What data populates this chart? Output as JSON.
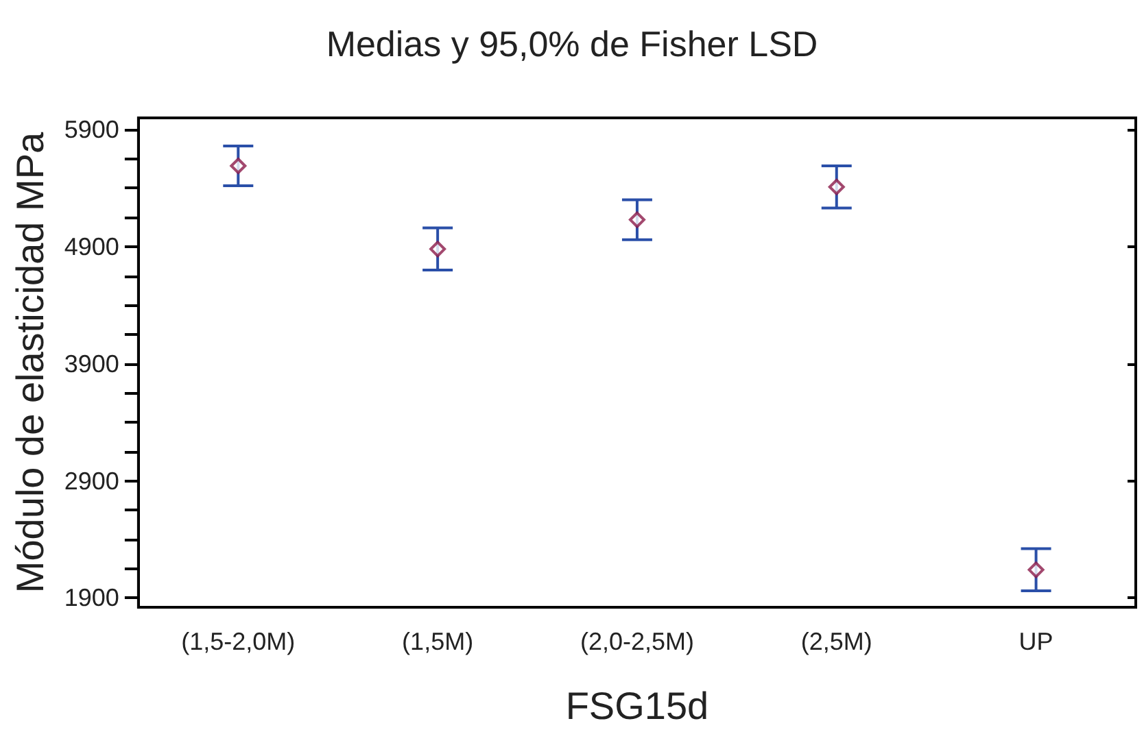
{
  "chart_data": {
    "type": "scatter",
    "title": "Medias y 95,0% de Fisher LSD",
    "xlabel": "FSG15d",
    "ylabel": "Módulo de elasticidad MPa",
    "categories": [
      "(1,5-2,0M)",
      "(1,5M)",
      "(2,0-2,5M)",
      "(2,5M)",
      "UP"
    ],
    "series": [
      {
        "color": "#8b1a4a",
        "values": [
          5590,
          4880,
          5130,
          5410,
          2140
        ],
        "errors": [
          170,
          180,
          170,
          180,
          180
        ]
      }
    ],
    "ylim": [
      1820,
      6000
    ],
    "yticks": [
      {
        "value": 1900,
        "label": "1900"
      },
      {
        "value": 2150,
        "label": null
      },
      {
        "value": 2400,
        "label": null
      },
      {
        "value": 2650,
        "label": null
      },
      {
        "value": 2900,
        "label": "2900"
      },
      {
        "value": 3150,
        "label": null
      },
      {
        "value": 3400,
        "label": null
      },
      {
        "value": 3650,
        "label": null
      },
      {
        "value": 3900,
        "label": "3900"
      },
      {
        "value": 4150,
        "label": null
      },
      {
        "value": 4400,
        "label": null
      },
      {
        "value": 4650,
        "label": null
      },
      {
        "value": 4900,
        "label": "4900"
      },
      {
        "value": 5150,
        "label": null
      },
      {
        "value": 5400,
        "label": null
      },
      {
        "value": 5650,
        "label": null
      },
      {
        "value": 5900,
        "label": "5900"
      }
    ],
    "marker": "diamond",
    "grid": false
  }
}
